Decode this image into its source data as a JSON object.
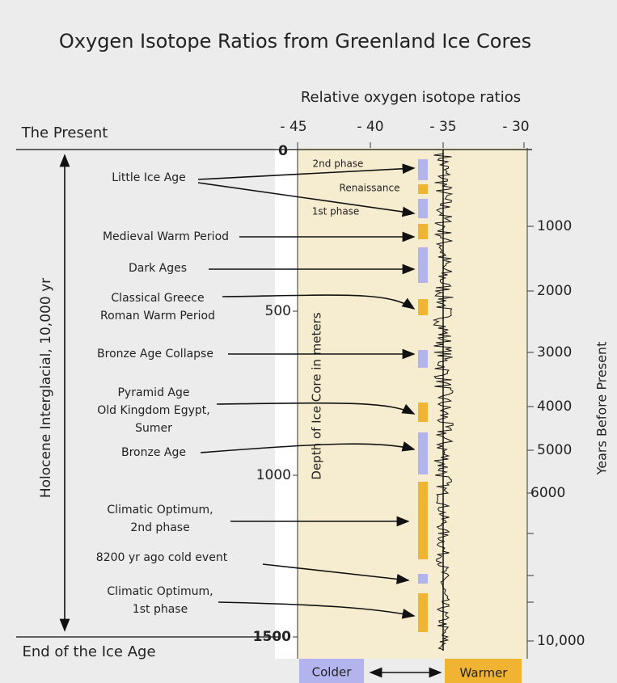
{
  "title": "Oxygen Isotope Ratios from Greenland Ice Cores",
  "top_axis": {
    "label": "Relative oxygen isotope ratios",
    "ticks": [
      "- 45",
      "- 40",
      "- 35",
      "- 30"
    ]
  },
  "left_axis": {
    "label": "Depth of Ice Core in meters",
    "ticks": [
      "0",
      "500",
      "1000",
      "1500"
    ]
  },
  "right_axis": {
    "label": "Years Before Present",
    "ticks": [
      "1000",
      "2000",
      "3000",
      "4000",
      "5000",
      "6000",
      "10,000"
    ]
  },
  "span": {
    "top": "The Present",
    "bottom": "End of the Ice Age",
    "label": "Holocene Interglacial, 10,000 yr"
  },
  "events": [
    {
      "lines": [
        "Little Ice Age"
      ]
    },
    {
      "lines": [
        "Medieval Warm Period"
      ]
    },
    {
      "lines": [
        "Dark Ages"
      ]
    },
    {
      "lines": [
        "Classical Greece",
        "Roman Warm Period"
      ]
    },
    {
      "lines": [
        "Bronze Age Collapse"
      ]
    },
    {
      "lines": [
        "Pyramid Age",
        "Old Kingdom Egypt,",
        "Sumer"
      ]
    },
    {
      "lines": [
        "Bronze Age"
      ]
    },
    {
      "lines": [
        "Climatic Optimum,",
        "2nd phase"
      ]
    },
    {
      "lines": [
        "8200 yr ago cold event"
      ]
    },
    {
      "lines": [
        "Climatic Optimum,",
        "1st phase"
      ]
    }
  ],
  "little_ice_age_notes": [
    "2nd phase",
    "Renaissance",
    "1st phase"
  ],
  "legend": {
    "cold": "Colder",
    "warm": "Warmer"
  }
}
